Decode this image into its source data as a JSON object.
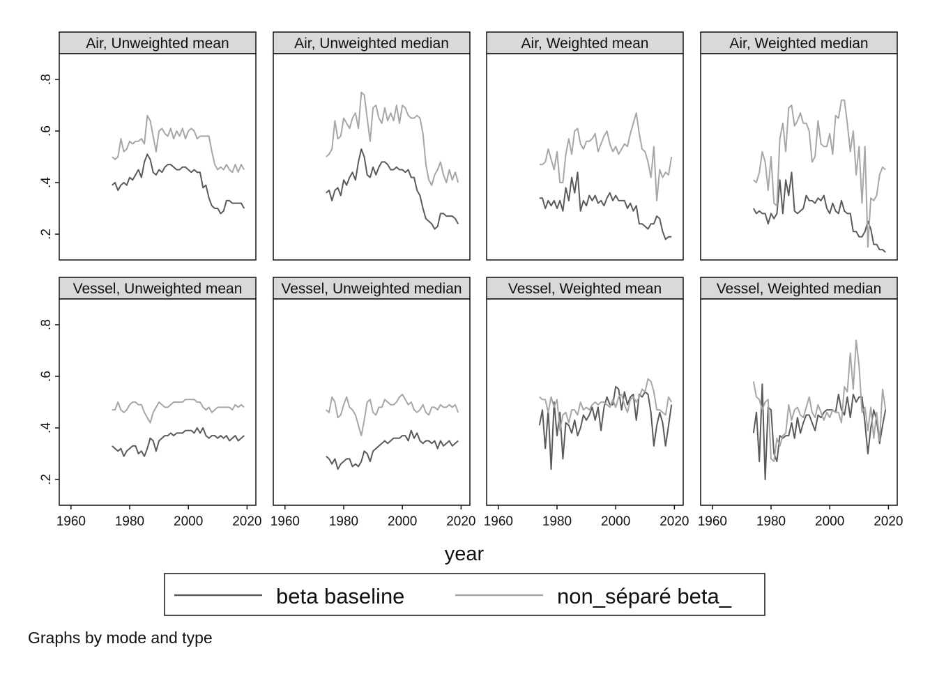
{
  "chart_data": {
    "type": "line",
    "note": "Graphs by mode and type",
    "xlabel": "year",
    "ylabel": "",
    "xlim": [
      1956,
      2023
    ],
    "ylim": [
      0.1,
      0.9
    ],
    "x_ticks": [
      1960,
      1980,
      2000,
      2020
    ],
    "x_tick_labels": [
      "1960",
      "1980",
      "2000",
      "2020"
    ],
    "y_ticks": [
      0.2,
      0.4,
      0.6,
      0.8
    ],
    "y_tick_labels": [
      ".2",
      ".4",
      ".6",
      ".8"
    ],
    "grid": false,
    "layout": "2 rows x 4 columns of panels, shared axes",
    "legend": {
      "position": "bottom",
      "entries": [
        "beta baseline",
        "non_séparé beta_"
      ],
      "colors": [
        "#5a5a5a",
        "#a6a6a6"
      ]
    },
    "x": [
      1974,
      1975,
      1976,
      1977,
      1978,
      1979,
      1980,
      1981,
      1982,
      1983,
      1984,
      1985,
      1986,
      1987,
      1988,
      1989,
      1990,
      1991,
      1992,
      1993,
      1994,
      1995,
      1996,
      1997,
      1998,
      1999,
      2000,
      2001,
      2002,
      2003,
      2004,
      2005,
      2006,
      2007,
      2008,
      2009,
      2010,
      2011,
      2012,
      2013,
      2014,
      2015,
      2016,
      2017,
      2018,
      2019
    ],
    "panels": [
      {
        "title": "Air, Unweighted mean",
        "series": [
          {
            "name": "beta baseline",
            "values": [
              0.39,
              0.4,
              0.37,
              0.39,
              0.4,
              0.39,
              0.42,
              0.41,
              0.43,
              0.45,
              0.42,
              0.48,
              0.51,
              0.49,
              0.44,
              0.43,
              0.45,
              0.44,
              0.46,
              0.47,
              0.47,
              0.46,
              0.45,
              0.45,
              0.46,
              0.46,
              0.45,
              0.44,
              0.45,
              0.44,
              0.44,
              0.38,
              0.39,
              0.34,
              0.31,
              0.3,
              0.3,
              0.28,
              0.29,
              0.33,
              0.33,
              0.32,
              0.32,
              0.32,
              0.32,
              0.3
            ]
          },
          {
            "name": "non_séparé beta_",
            "values": [
              0.5,
              0.49,
              0.5,
              0.57,
              0.52,
              0.53,
              0.56,
              0.55,
              0.56,
              0.56,
              0.57,
              0.55,
              0.66,
              0.64,
              0.58,
              0.52,
              0.6,
              0.61,
              0.59,
              0.58,
              0.61,
              0.57,
              0.6,
              0.58,
              0.61,
              0.57,
              0.6,
              0.61,
              0.6,
              0.57,
              0.58,
              0.58,
              0.58,
              0.58,
              0.52,
              0.47,
              0.45,
              0.46,
              0.45,
              0.47,
              0.45,
              0.44,
              0.47,
              0.44,
              0.47,
              0.45
            ]
          }
        ]
      },
      {
        "title": "Air, Unweighted median",
        "series": [
          {
            "name": "beta baseline",
            "values": [
              0.36,
              0.37,
              0.33,
              0.37,
              0.38,
              0.35,
              0.41,
              0.39,
              0.42,
              0.44,
              0.41,
              0.48,
              0.53,
              0.5,
              0.43,
              0.42,
              0.46,
              0.43,
              0.46,
              0.48,
              0.48,
              0.47,
              0.45,
              0.45,
              0.46,
              0.45,
              0.45,
              0.44,
              0.45,
              0.42,
              0.42,
              0.37,
              0.35,
              0.3,
              0.26,
              0.25,
              0.24,
              0.22,
              0.23,
              0.28,
              0.28,
              0.27,
              0.27,
              0.27,
              0.26,
              0.24
            ]
          },
          {
            "name": "non_séparé beta_",
            "values": [
              0.5,
              0.51,
              0.53,
              0.64,
              0.57,
              0.58,
              0.65,
              0.63,
              0.61,
              0.65,
              0.67,
              0.61,
              0.75,
              0.74,
              0.65,
              0.56,
              0.69,
              0.7,
              0.65,
              0.63,
              0.69,
              0.64,
              0.67,
              0.64,
              0.7,
              0.63,
              0.7,
              0.69,
              0.66,
              0.65,
              0.65,
              0.66,
              0.65,
              0.59,
              0.47,
              0.41,
              0.39,
              0.43,
              0.45,
              0.48,
              0.43,
              0.4,
              0.45,
              0.41,
              0.44,
              0.4
            ]
          }
        ]
      },
      {
        "title": "Air, Weighted mean",
        "series": [
          {
            "name": "beta baseline",
            "values": [
              0.34,
              0.34,
              0.3,
              0.33,
              0.31,
              0.33,
              0.3,
              0.33,
              0.29,
              0.38,
              0.33,
              0.42,
              0.36,
              0.44,
              0.29,
              0.33,
              0.31,
              0.35,
              0.33,
              0.35,
              0.32,
              0.33,
              0.31,
              0.34,
              0.36,
              0.33,
              0.35,
              0.33,
              0.33,
              0.33,
              0.3,
              0.32,
              0.29,
              0.31,
              0.24,
              0.24,
              0.23,
              0.22,
              0.24,
              0.24,
              0.27,
              0.26,
              0.21,
              0.18,
              0.19,
              0.19
            ]
          },
          {
            "name": "non_séparé beta_",
            "values": [
              0.47,
              0.47,
              0.48,
              0.53,
              0.49,
              0.45,
              0.52,
              0.4,
              0.4,
              0.51,
              0.57,
              0.51,
              0.6,
              0.61,
              0.55,
              0.53,
              0.56,
              0.56,
              0.57,
              0.59,
              0.52,
              0.55,
              0.58,
              0.6,
              0.55,
              0.52,
              0.54,
              0.51,
              0.53,
              0.55,
              0.54,
              0.59,
              0.63,
              0.67,
              0.59,
              0.53,
              0.52,
              0.48,
              0.42,
              0.54,
              0.33,
              0.45,
              0.42,
              0.44,
              0.43,
              0.5
            ]
          }
        ]
      },
      {
        "title": "Air, Weighted median",
        "series": [
          {
            "name": "beta baseline",
            "values": [
              0.3,
              0.28,
              0.29,
              0.28,
              0.28,
              0.24,
              0.28,
              0.26,
              0.28,
              0.41,
              0.28,
              0.41,
              0.35,
              0.44,
              0.29,
              0.28,
              0.29,
              0.3,
              0.35,
              0.33,
              0.33,
              0.32,
              0.34,
              0.33,
              0.35,
              0.3,
              0.28,
              0.32,
              0.29,
              0.28,
              0.33,
              0.29,
              0.28,
              0.28,
              0.21,
              0.21,
              0.19,
              0.19,
              0.21,
              0.25,
              0.22,
              0.16,
              0.16,
              0.14,
              0.14,
              0.13
            ]
          },
          {
            "name": "non_séparé beta_",
            "values": [
              0.41,
              0.4,
              0.44,
              0.52,
              0.48,
              0.37,
              0.5,
              0.32,
              0.31,
              0.57,
              0.63,
              0.52,
              0.69,
              0.7,
              0.62,
              0.64,
              0.67,
              0.63,
              0.63,
              0.6,
              0.48,
              0.5,
              0.64,
              0.55,
              0.54,
              0.54,
              0.59,
              0.51,
              0.66,
              0.65,
              0.72,
              0.72,
              0.63,
              0.52,
              0.6,
              0.43,
              0.54,
              0.32,
              0.54,
              0.15,
              0.34,
              0.33,
              0.35,
              0.43,
              0.46,
              0.45
            ]
          }
        ]
      },
      {
        "title": "Vessel, Unweighted mean",
        "series": [
          {
            "name": "beta baseline",
            "values": [
              0.33,
              0.32,
              0.31,
              0.32,
              0.29,
              0.31,
              0.32,
              0.33,
              0.33,
              0.3,
              0.31,
              0.29,
              0.32,
              0.36,
              0.35,
              0.31,
              0.35,
              0.36,
              0.37,
              0.37,
              0.38,
              0.37,
              0.38,
              0.38,
              0.38,
              0.39,
              0.39,
              0.39,
              0.38,
              0.4,
              0.38,
              0.4,
              0.37,
              0.36,
              0.37,
              0.37,
              0.36,
              0.37,
              0.36,
              0.37,
              0.35,
              0.36,
              0.37,
              0.35,
              0.36,
              0.37
            ]
          },
          {
            "name": "non_séparé beta_",
            "values": [
              0.47,
              0.47,
              0.5,
              0.47,
              0.46,
              0.47,
              0.49,
              0.5,
              0.5,
              0.49,
              0.49,
              0.46,
              0.44,
              0.42,
              0.46,
              0.48,
              0.5,
              0.49,
              0.48,
              0.48,
              0.49,
              0.5,
              0.5,
              0.5,
              0.5,
              0.51,
              0.51,
              0.51,
              0.51,
              0.5,
              0.5,
              0.48,
              0.47,
              0.48,
              0.46,
              0.47,
              0.48,
              0.48,
              0.48,
              0.48,
              0.48,
              0.47,
              0.49,
              0.48,
              0.49,
              0.48
            ]
          }
        ]
      },
      {
        "title": "Vessel, Unweighted median",
        "series": [
          {
            "name": "beta baseline",
            "values": [
              0.29,
              0.28,
              0.26,
              0.28,
              0.24,
              0.26,
              0.27,
              0.28,
              0.28,
              0.25,
              0.26,
              0.25,
              0.27,
              0.31,
              0.3,
              0.27,
              0.31,
              0.32,
              0.33,
              0.34,
              0.35,
              0.34,
              0.35,
              0.36,
              0.36,
              0.36,
              0.37,
              0.37,
              0.35,
              0.39,
              0.36,
              0.38,
              0.35,
              0.34,
              0.35,
              0.35,
              0.34,
              0.35,
              0.32,
              0.35,
              0.33,
              0.34,
              0.35,
              0.33,
              0.34,
              0.35
            ]
          },
          {
            "name": "non_séparé beta_",
            "values": [
              0.47,
              0.46,
              0.52,
              0.5,
              0.44,
              0.45,
              0.49,
              0.52,
              0.48,
              0.47,
              0.45,
              0.41,
              0.37,
              0.43,
              0.5,
              0.51,
              0.46,
              0.45,
              0.48,
              0.48,
              0.51,
              0.5,
              0.49,
              0.49,
              0.5,
              0.52,
              0.53,
              0.51,
              0.49,
              0.5,
              0.47,
              0.46,
              0.47,
              0.49,
              0.46,
              0.45,
              0.48,
              0.48,
              0.47,
              0.49,
              0.48,
              0.48,
              0.49,
              0.48,
              0.49,
              0.46
            ]
          }
        ]
      },
      {
        "title": "Vessel, Weighted mean",
        "series": [
          {
            "name": "beta baseline",
            "values": [
              0.41,
              0.47,
              0.32,
              0.47,
              0.24,
              0.5,
              0.37,
              0.46,
              0.28,
              0.42,
              0.41,
              0.38,
              0.43,
              0.37,
              0.4,
              0.45,
              0.43,
              0.45,
              0.48,
              0.43,
              0.48,
              0.39,
              0.48,
              0.52,
              0.49,
              0.49,
              0.56,
              0.55,
              0.47,
              0.54,
              0.49,
              0.52,
              0.53,
              0.43,
              0.53,
              0.52,
              0.54,
              0.53,
              0.46,
              0.33,
              0.41,
              0.46,
              0.42,
              0.33,
              0.41,
              0.49
            ]
          },
          {
            "name": "non_séparé beta_",
            "values": [
              0.52,
              0.51,
              0.51,
              0.46,
              0.52,
              0.48,
              0.51,
              0.39,
              0.45,
              0.46,
              0.42,
              0.47,
              0.47,
              0.45,
              0.5,
              0.47,
              0.48,
              0.47,
              0.49,
              0.5,
              0.49,
              0.5,
              0.5,
              0.49,
              0.48,
              0.51,
              0.48,
              0.52,
              0.53,
              0.49,
              0.46,
              0.51,
              0.52,
              0.5,
              0.52,
              0.55,
              0.54,
              0.59,
              0.58,
              0.54,
              0.47,
              0.47,
              0.46,
              0.45,
              0.52,
              0.5
            ]
          }
        ]
      },
      {
        "title": "Vessel, Weighted median",
        "series": [
          {
            "name": "beta baseline",
            "values": [
              0.38,
              0.46,
              0.27,
              0.57,
              0.2,
              0.48,
              0.47,
              0.3,
              0.27,
              0.37,
              0.36,
              0.37,
              0.37,
              0.42,
              0.36,
              0.44,
              0.38,
              0.42,
              0.45,
              0.45,
              0.42,
              0.39,
              0.45,
              0.44,
              0.46,
              0.47,
              0.47,
              0.47,
              0.46,
              0.53,
              0.47,
              0.45,
              0.52,
              0.44,
              0.53,
              0.5,
              0.52,
              0.52,
              0.42,
              0.3,
              0.4,
              0.47,
              0.43,
              0.34,
              0.41,
              0.47
            ]
          },
          {
            "name": "non_séparé beta_",
            "values": [
              0.58,
              0.52,
              0.51,
              0.47,
              0.5,
              0.51,
              0.28,
              0.27,
              0.36,
              0.33,
              0.37,
              0.38,
              0.49,
              0.43,
              0.47,
              0.48,
              0.45,
              0.44,
              0.48,
              0.52,
              0.46,
              0.44,
              0.49,
              0.46,
              0.43,
              0.46,
              0.44,
              0.47,
              0.46,
              0.46,
              0.42,
              0.56,
              0.54,
              0.69,
              0.55,
              0.74,
              0.64,
              0.46,
              0.48,
              0.39,
              0.48,
              0.36,
              0.46,
              0.35,
              0.55,
              0.47
            ]
          }
        ]
      }
    ]
  }
}
